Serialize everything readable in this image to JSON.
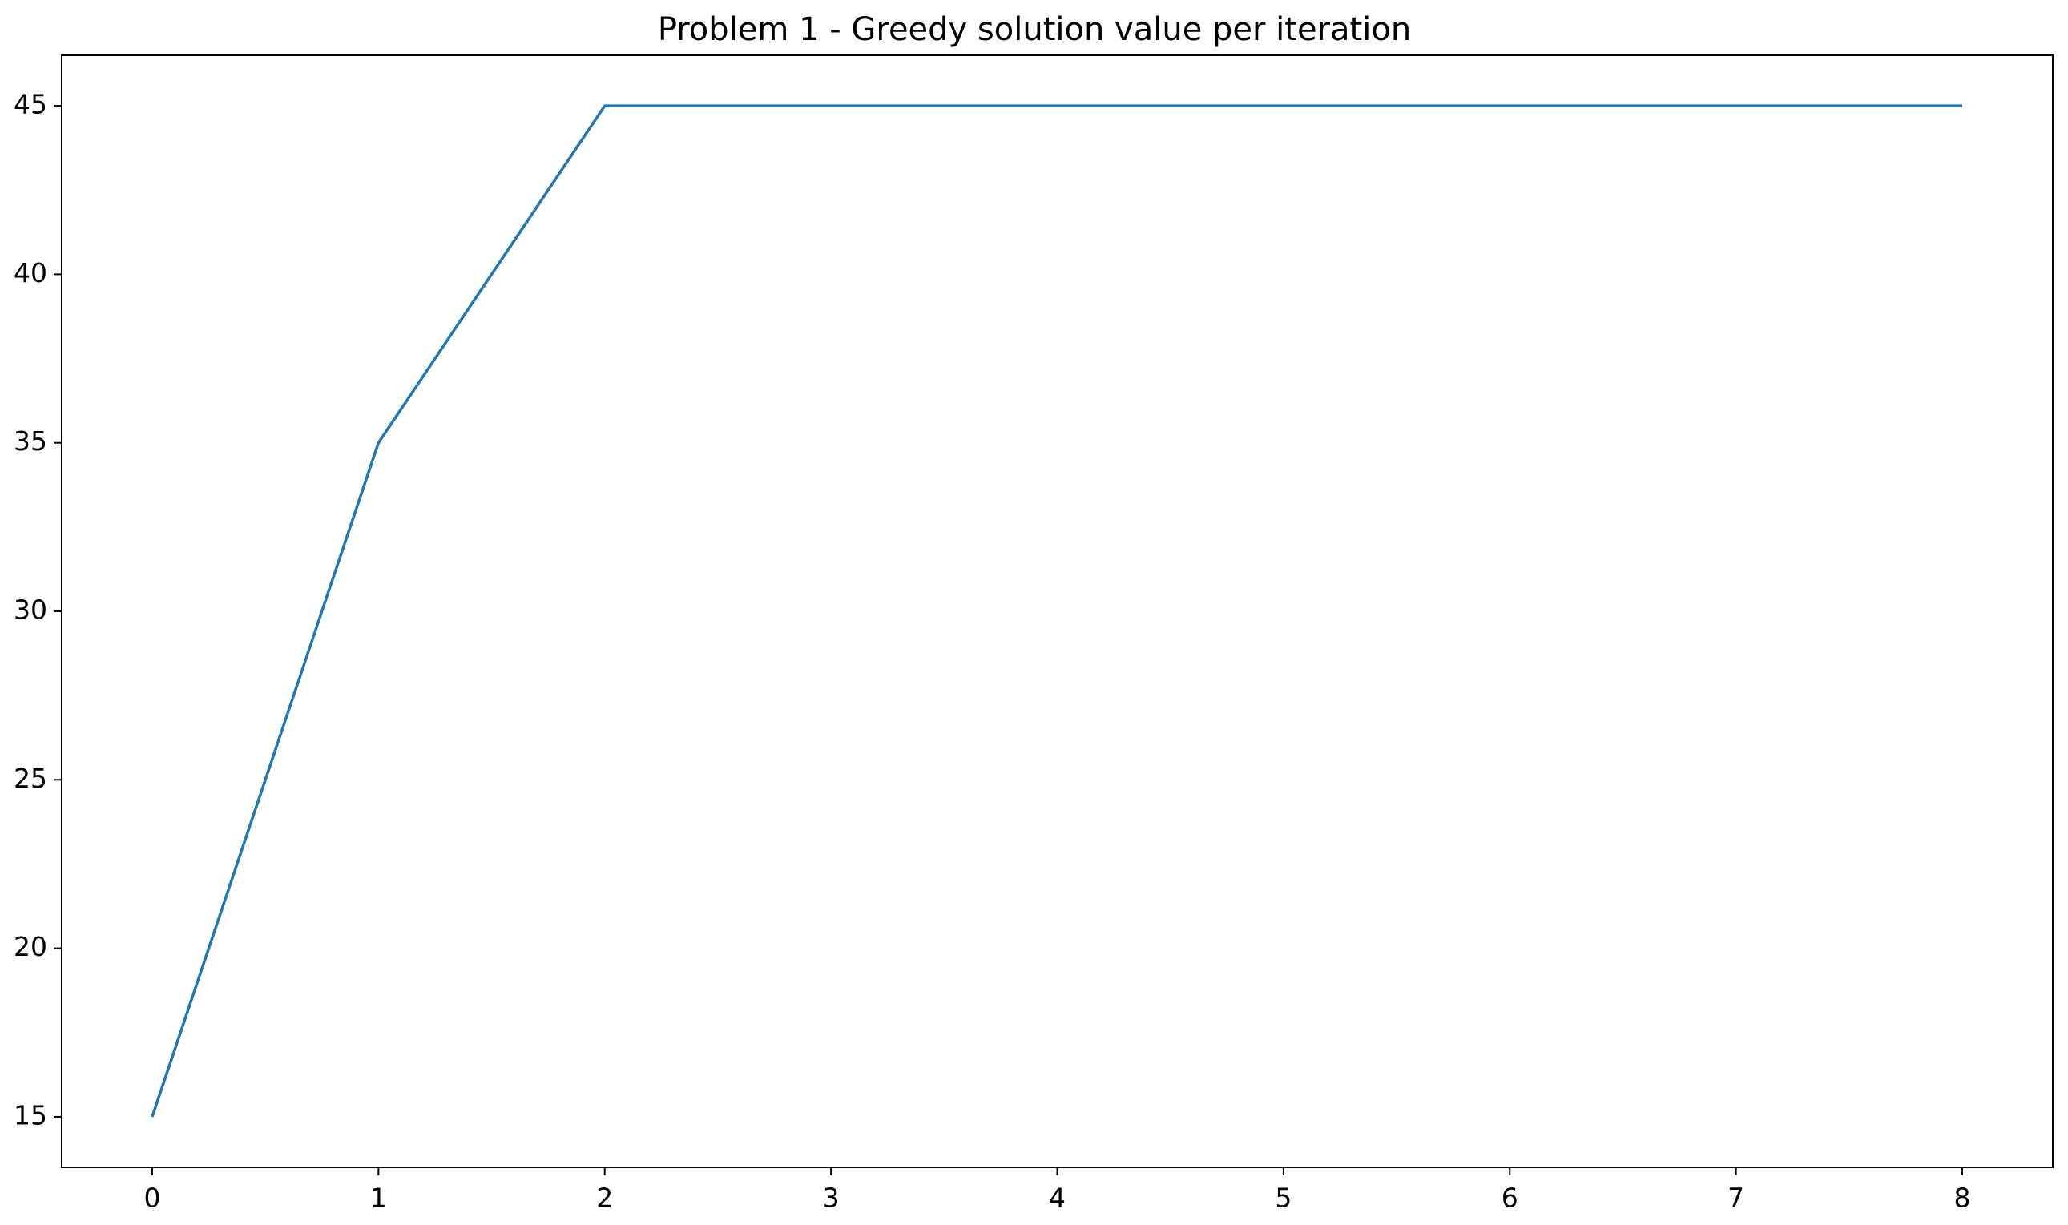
{
  "chart_data": {
    "type": "line",
    "title": "Problem 1 - Greedy solution value per iteration",
    "xlabel": "",
    "ylabel": "",
    "x": [
      0,
      1,
      2,
      3,
      4,
      5,
      6,
      7,
      8
    ],
    "series": [
      {
        "values": [
          15,
          35,
          45,
          45,
          45,
          45,
          45,
          45,
          45
        ],
        "color": "#1f77b4"
      }
    ],
    "xlim": [
      -0.4,
      8.4
    ],
    "ylim": [
      13.5,
      46.5
    ],
    "xticks": [
      0,
      1,
      2,
      3,
      4,
      5,
      6,
      7,
      8
    ],
    "yticks": [
      15,
      20,
      25,
      30,
      35,
      40,
      45
    ],
    "grid": false,
    "legend": "none"
  }
}
